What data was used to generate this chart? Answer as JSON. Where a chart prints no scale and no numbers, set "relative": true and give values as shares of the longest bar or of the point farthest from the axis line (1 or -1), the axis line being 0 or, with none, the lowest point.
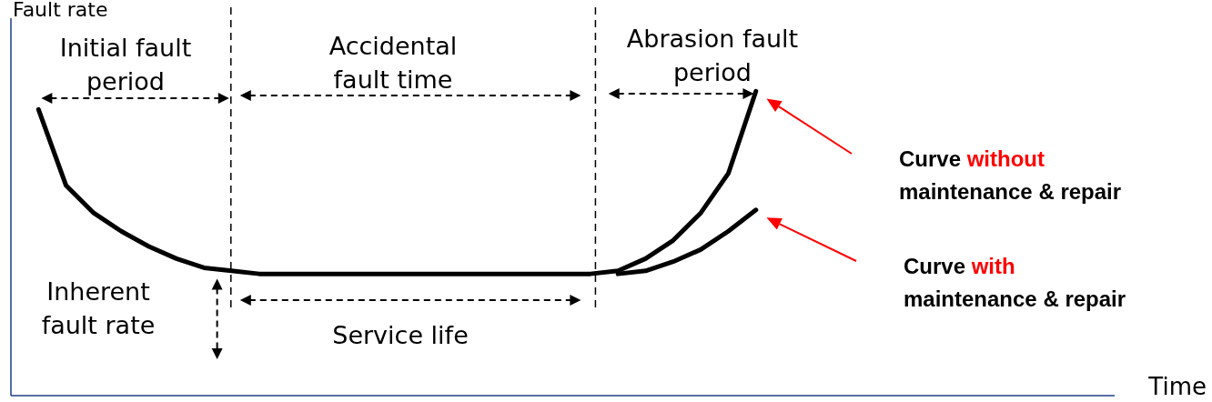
{
  "chart_data": {
    "type": "line",
    "relative": true,
    "xlabel": "Time",
    "ylabel": "Fault rate",
    "marker": "none",
    "line_style": "solid",
    "categories": [
      null,
      null,
      null,
      null,
      null,
      null,
      null,
      null,
      null,
      null,
      null,
      null,
      null,
      null,
      null,
      null,
      null,
      null,
      null,
      null,
      null,
      null,
      null,
      null,
      null,
      null,
      null,
      null,
      null,
      null,
      null,
      null,
      null,
      null,
      null,
      null,
      null,
      null,
      null,
      null,
      null
    ],
    "series": [
      {
        "name": "Curve without maintenance & repair",
        "color": "#000000",
        "values": [
          null,
          0.94,
          0.69,
          0.6,
          0.54,
          0.49,
          0.45,
          0.42,
          0.41,
          0.4,
          0.4,
          0.4,
          0.4,
          0.4,
          0.4,
          0.4,
          0.4,
          0.4,
          0.4,
          0.4,
          0.4,
          0.4,
          0.41,
          0.45,
          0.51,
          0.6,
          0.73,
          1,
          null,
          null,
          null,
          null,
          null,
          null,
          null,
          null,
          null,
          null,
          null,
          null,
          null
        ]
      },
      {
        "name": "Curve with maintenance & repair",
        "color": "#000000",
        "values": [
          null,
          null,
          null,
          null,
          null,
          null,
          null,
          null,
          null,
          null,
          null,
          null,
          null,
          null,
          null,
          null,
          null,
          null,
          null,
          null,
          null,
          null,
          0.4,
          0.41,
          0.44,
          0.48,
          0.54,
          0.61,
          null,
          null,
          null,
          null,
          null,
          null,
          null,
          null,
          null,
          null,
          null,
          null,
          null
        ]
      }
    ],
    "annotations": [
      "Initial fault period",
      "Accidental fault time",
      "Abrasion fault period",
      "Inherent fault rate",
      "Service life"
    ]
  }
}
